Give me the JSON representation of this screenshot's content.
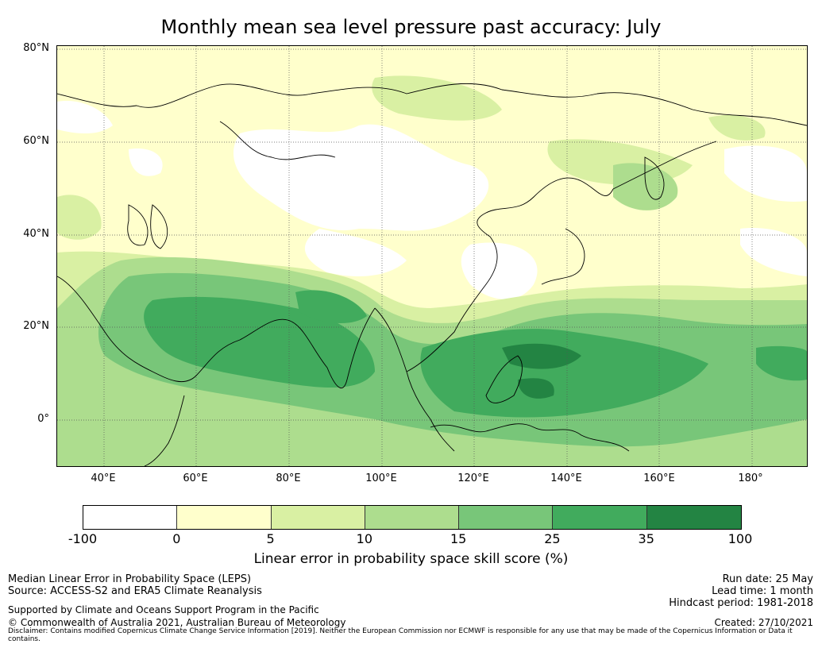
{
  "title": "Monthly mean sea level pressure past accuracy: July",
  "map": {
    "lat_labels": [
      "80°N",
      "60°N",
      "40°N",
      "20°N",
      "0°"
    ],
    "lon_labels": [
      "40°E",
      "60°E",
      "80°E",
      "100°E",
      "120°E",
      "140°E",
      "160°E",
      "180°"
    ],
    "colors": {
      "land_outline": "#000000",
      "gridline": "#555555"
    }
  },
  "colorbar": {
    "ticks": [
      "-100",
      "0",
      "5",
      "10",
      "15",
      "25",
      "35",
      "100"
    ],
    "colors": [
      "#ffffff",
      "#ffffcc",
      "#d9f0a3",
      "#addd8e",
      "#78c679",
      "#41ab5d",
      "#238443"
    ],
    "label": "Linear error in probability space skill score (%)"
  },
  "footer": {
    "left": {
      "line1": "Median Linear Error in Probability Space (LEPS)",
      "line2": "Source: ACCESS-S2 and ERA5 Climate Reanalysis",
      "line3": "Supported by Climate and Oceans Support Program in the Pacific",
      "line4": "© Commonwealth of Australia 2021, Australian Bureau of Meteorology"
    },
    "right": {
      "run_date": "Run date: 25 May",
      "lead_time": "Lead time: 1 month",
      "hindcast": "Hindcast period: 1981-2018",
      "created": "Created: 27/10/2021"
    },
    "disclaimer": "Disclaimer: Contains modified Copernicus Climate Change Service Information [2019]. Neither the European Commission nor ECMWF is responsible for any use that may be made of the Copernicus Information or Data it contains."
  }
}
